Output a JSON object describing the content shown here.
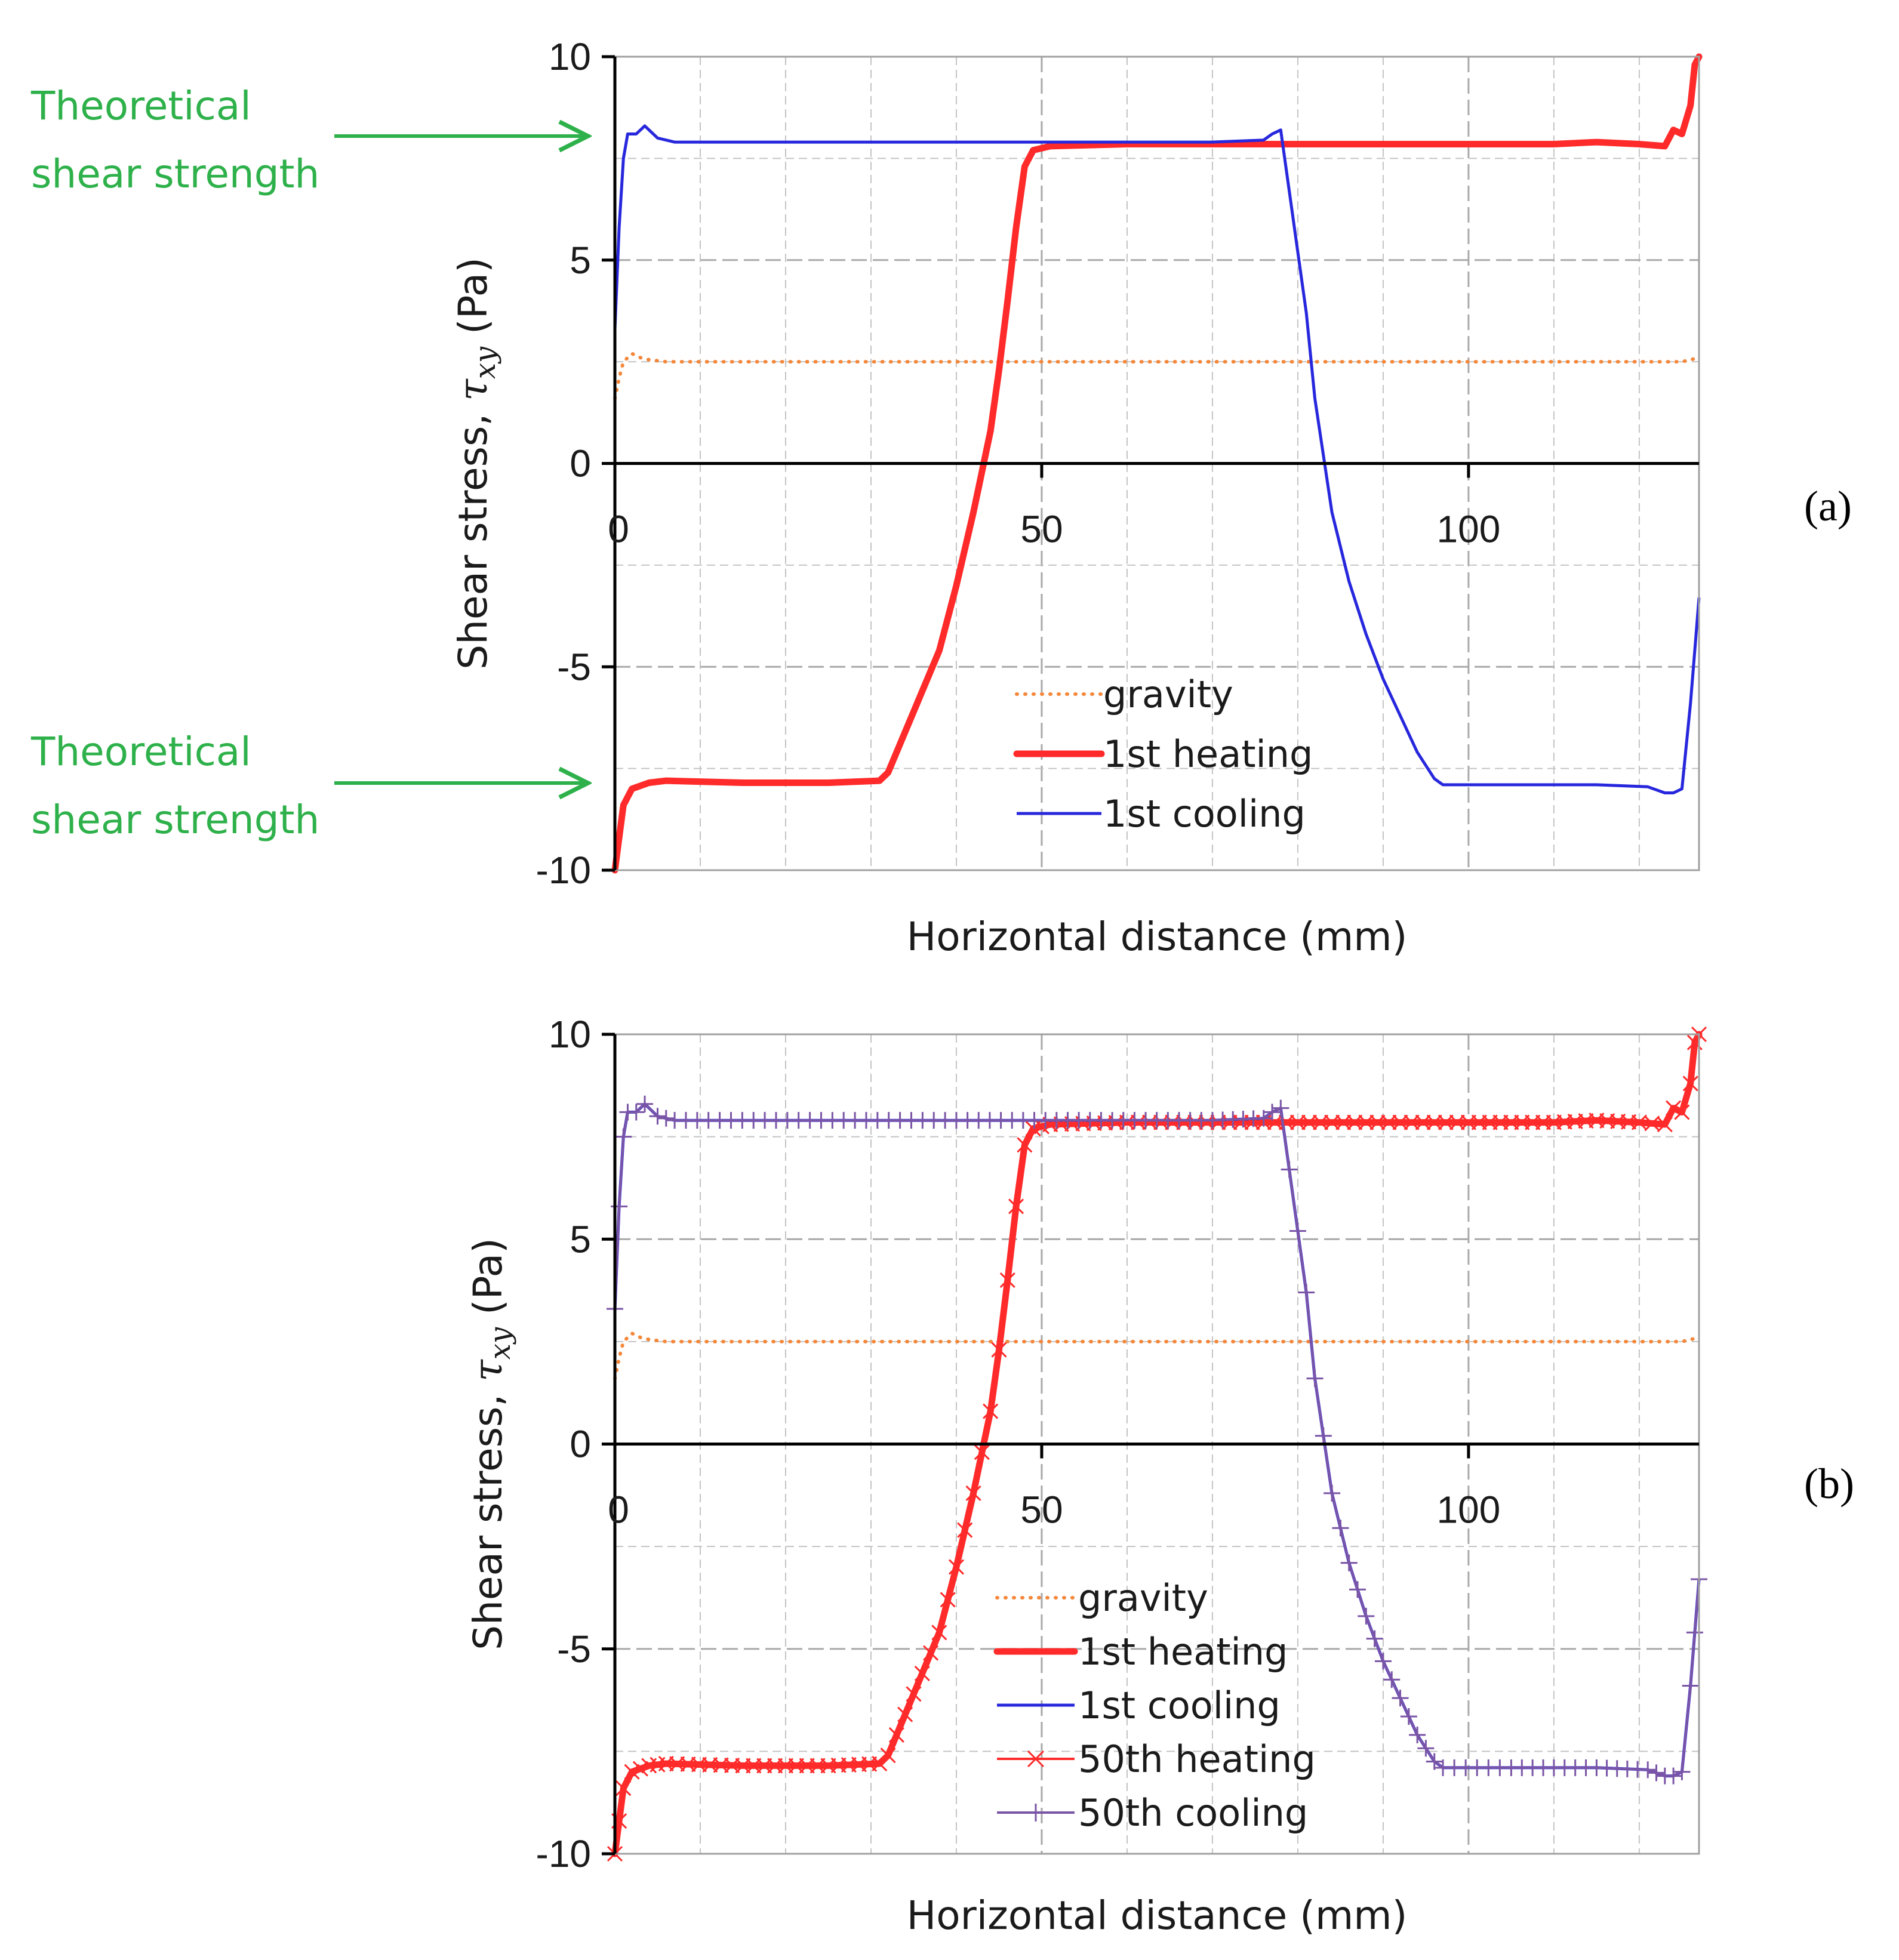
{
  "chart_data": [
    {
      "type": "line",
      "panel_label": "(a)",
      "xlabel": "Horizontal distance (mm)",
      "ylabel": "Shear stress, τxy (Pa)",
      "ylabel_prefix": "Shear stress, ",
      "ylabel_symbol": "τ",
      "ylabel_subscript": "xy",
      "ylabel_suffix": " (Pa)",
      "xlim": [
        0,
        127
      ],
      "ylim": [
        -10,
        10
      ],
      "x_ticks": [
        "0",
        "50",
        "100"
      ],
      "y_ticks": [
        "10",
        "5",
        "0",
        "-5",
        "-10"
      ],
      "grid": true,
      "legend": [
        "gravity",
        "1st heating",
        "1st cooling"
      ],
      "legend_position": "bottom-center",
      "annotations": [
        {
          "line1": "Theoretical",
          "line2": "shear strength",
          "points_to_y": 7.9
        },
        {
          "line1": "Theoretical",
          "line2": "shear strength",
          "points_to_y": -7.9
        }
      ],
      "series": [
        {
          "name": "gravity",
          "color": "#f4873a",
          "style": "dotted",
          "points": [
            [
              0,
              1.6
            ],
            [
              0.5,
              2.1
            ],
            [
              1,
              2.5
            ],
            [
              2,
              2.7
            ],
            [
              3,
              2.6
            ],
            [
              4,
              2.55
            ],
            [
              6,
              2.5
            ],
            [
              40,
              2.5
            ],
            [
              80,
              2.5
            ],
            [
              120,
              2.5
            ],
            [
              125,
              2.5
            ],
            [
              126,
              2.55
            ],
            [
              127,
              2.6
            ]
          ]
        },
        {
          "name": "1st heating",
          "color": "#ff2a2a",
          "style": "thick",
          "points": [
            [
              0,
              -10
            ],
            [
              0.5,
              -9.2
            ],
            [
              1,
              -8.4
            ],
            [
              2,
              -8.0
            ],
            [
              4,
              -7.85
            ],
            [
              6,
              -7.8
            ],
            [
              15,
              -7.85
            ],
            [
              25,
              -7.85
            ],
            [
              31,
              -7.8
            ],
            [
              32,
              -7.6
            ],
            [
              34,
              -6.6
            ],
            [
              36,
              -5.6
            ],
            [
              38,
              -4.6
            ],
            [
              40,
              -3.0
            ],
            [
              42,
              -1.2
            ],
            [
              44,
              0.8
            ],
            [
              45,
              2.3
            ],
            [
              46,
              4.0
            ],
            [
              47,
              5.8
            ],
            [
              48,
              7.3
            ],
            [
              49,
              7.7
            ],
            [
              51,
              7.8
            ],
            [
              60,
              7.85
            ],
            [
              80,
              7.85
            ],
            [
              100,
              7.85
            ],
            [
              110,
              7.85
            ],
            [
              115,
              7.9
            ],
            [
              120,
              7.85
            ],
            [
              123,
              7.8
            ],
            [
              124,
              8.2
            ],
            [
              125,
              8.1
            ],
            [
              126,
              8.8
            ],
            [
              126.5,
              9.8
            ],
            [
              127,
              10
            ]
          ]
        },
        {
          "name": "1st cooling",
          "color": "#2727dd",
          "style": "solid",
          "points": [
            [
              0,
              3.3
            ],
            [
              0.5,
              5.8
            ],
            [
              1,
              7.5
            ],
            [
              1.5,
              8.1
            ],
            [
              2.5,
              8.1
            ],
            [
              3.5,
              8.3
            ],
            [
              5,
              8.0
            ],
            [
              7,
              7.9
            ],
            [
              40,
              7.9
            ],
            [
              70,
              7.9
            ],
            [
              76,
              7.95
            ],
            [
              77,
              8.1
            ],
            [
              78,
              8.2
            ],
            [
              79,
              6.7
            ],
            [
              80,
              5.2
            ],
            [
              81,
              3.7
            ],
            [
              82,
              1.6
            ],
            [
              83,
              0.2
            ],
            [
              84,
              -1.2
            ],
            [
              86,
              -2.9
            ],
            [
              88,
              -4.2
            ],
            [
              90,
              -5.3
            ],
            [
              92,
              -6.2
            ],
            [
              94,
              -7.1
            ],
            [
              96,
              -7.75
            ],
            [
              97,
              -7.9
            ],
            [
              105,
              -7.9
            ],
            [
              115,
              -7.9
            ],
            [
              121,
              -7.95
            ],
            [
              123,
              -8.1
            ],
            [
              124,
              -8.1
            ],
            [
              125,
              -8.0
            ],
            [
              126,
              -5.9
            ],
            [
              126.5,
              -4.6
            ],
            [
              127,
              -3.3
            ]
          ]
        }
      ]
    },
    {
      "type": "line",
      "panel_label": "(b)",
      "xlabel": "Horizontal distance (mm)",
      "ylabel": "Shear stress, τxy (Pa)",
      "ylabel_prefix": "Shear stress, ",
      "ylabel_symbol": "τ",
      "ylabel_subscript": "xy",
      "ylabel_suffix": " (Pa)",
      "xlim": [
        0,
        127
      ],
      "ylim": [
        -10,
        10
      ],
      "x_ticks": [
        "0",
        "50",
        "100"
      ],
      "y_ticks": [
        "10",
        "5",
        "0",
        "-5",
        "-10"
      ],
      "grid": true,
      "legend": [
        "gravity",
        "1st heating",
        "1st cooling",
        "50th heating",
        "50th cooling"
      ],
      "legend_position": "bottom-center",
      "series": [
        {
          "name": "gravity",
          "color": "#f4873a",
          "style": "dotted",
          "same_as": "gravity"
        },
        {
          "name": "1st heating",
          "color": "#ff2a2a",
          "style": "thick",
          "same_as": "1st heating"
        },
        {
          "name": "1st cooling",
          "color": "#2727dd",
          "style": "solid",
          "same_as": "1st cooling"
        },
        {
          "name": "50th heating",
          "color": "#ff2a2a",
          "style": "x-markers",
          "same_as": "1st heating"
        },
        {
          "name": "50th cooling",
          "color": "#7a55a6",
          "style": "plus-markers",
          "same_as": "1st cooling"
        }
      ]
    }
  ]
}
